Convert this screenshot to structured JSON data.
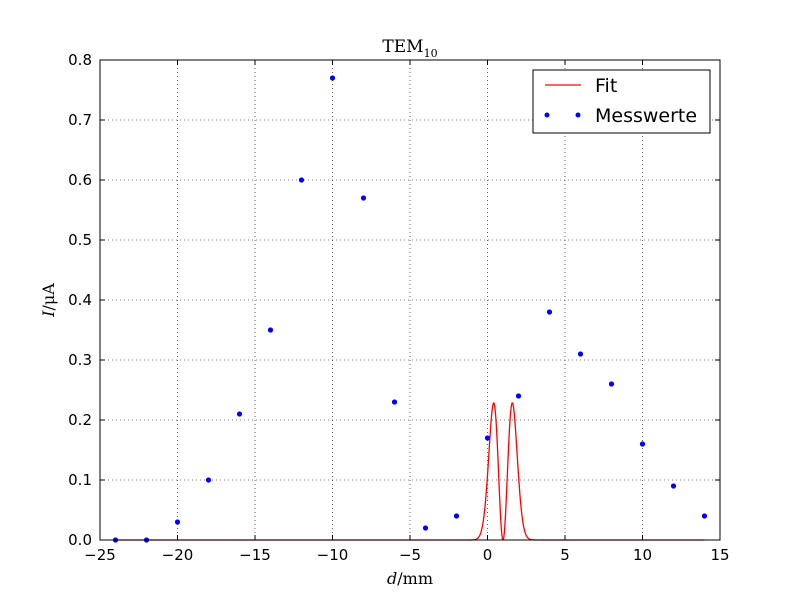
{
  "chart_data": {
    "type": "scatter",
    "title": {
      "main": "TEM",
      "sub": "10"
    },
    "xlabel": {
      "var": "d",
      "unit": "/mm"
    },
    "ylabel": {
      "var": "I",
      "unit": "/μA"
    },
    "xlim": [
      -25,
      15
    ],
    "ylim": [
      0.0,
      0.8
    ],
    "x_ticks": [
      -25,
      -20,
      -15,
      -10,
      -5,
      0,
      5,
      10,
      15
    ],
    "x_tick_labels": [
      "−25",
      "−20",
      "−15",
      "−10",
      "−5",
      "0",
      "5",
      "10",
      "15"
    ],
    "y_ticks": [
      0.0,
      0.1,
      0.2,
      0.3,
      0.4,
      0.5,
      0.6,
      0.7,
      0.8
    ],
    "y_tick_labels": [
      "0.0",
      "0.1",
      "0.2",
      "0.3",
      "0.4",
      "0.5",
      "0.6",
      "0.7",
      "0.8"
    ],
    "grid": true,
    "legend_position": "top-right",
    "series": [
      {
        "name": "Fit",
        "kind": "line",
        "color": "#ff0000",
        "x_range": [
          -24,
          14
        ],
        "model": "I0 * (d - x0)^2 * exp(-2 (d - x0)^2 / w^2)",
        "params": {
          "I0": 1.72,
          "x0": 1.0,
          "w": 0.85
        }
      },
      {
        "name": "Messwerte",
        "kind": "points",
        "color": "#0000ff",
        "x": [
          -24,
          -22,
          -20,
          -18,
          -16,
          -14,
          -12,
          -10,
          -8,
          -6,
          -4,
          -2,
          0,
          2,
          4,
          6,
          8,
          10,
          12,
          14
        ],
        "y": [
          0.0,
          0.0,
          0.03,
          0.1,
          0.21,
          0.35,
          0.6,
          0.77,
          0.57,
          0.23,
          0.02,
          0.04,
          0.17,
          0.24,
          0.38,
          0.31,
          0.26,
          0.16,
          0.09,
          0.04
        ]
      }
    ]
  }
}
